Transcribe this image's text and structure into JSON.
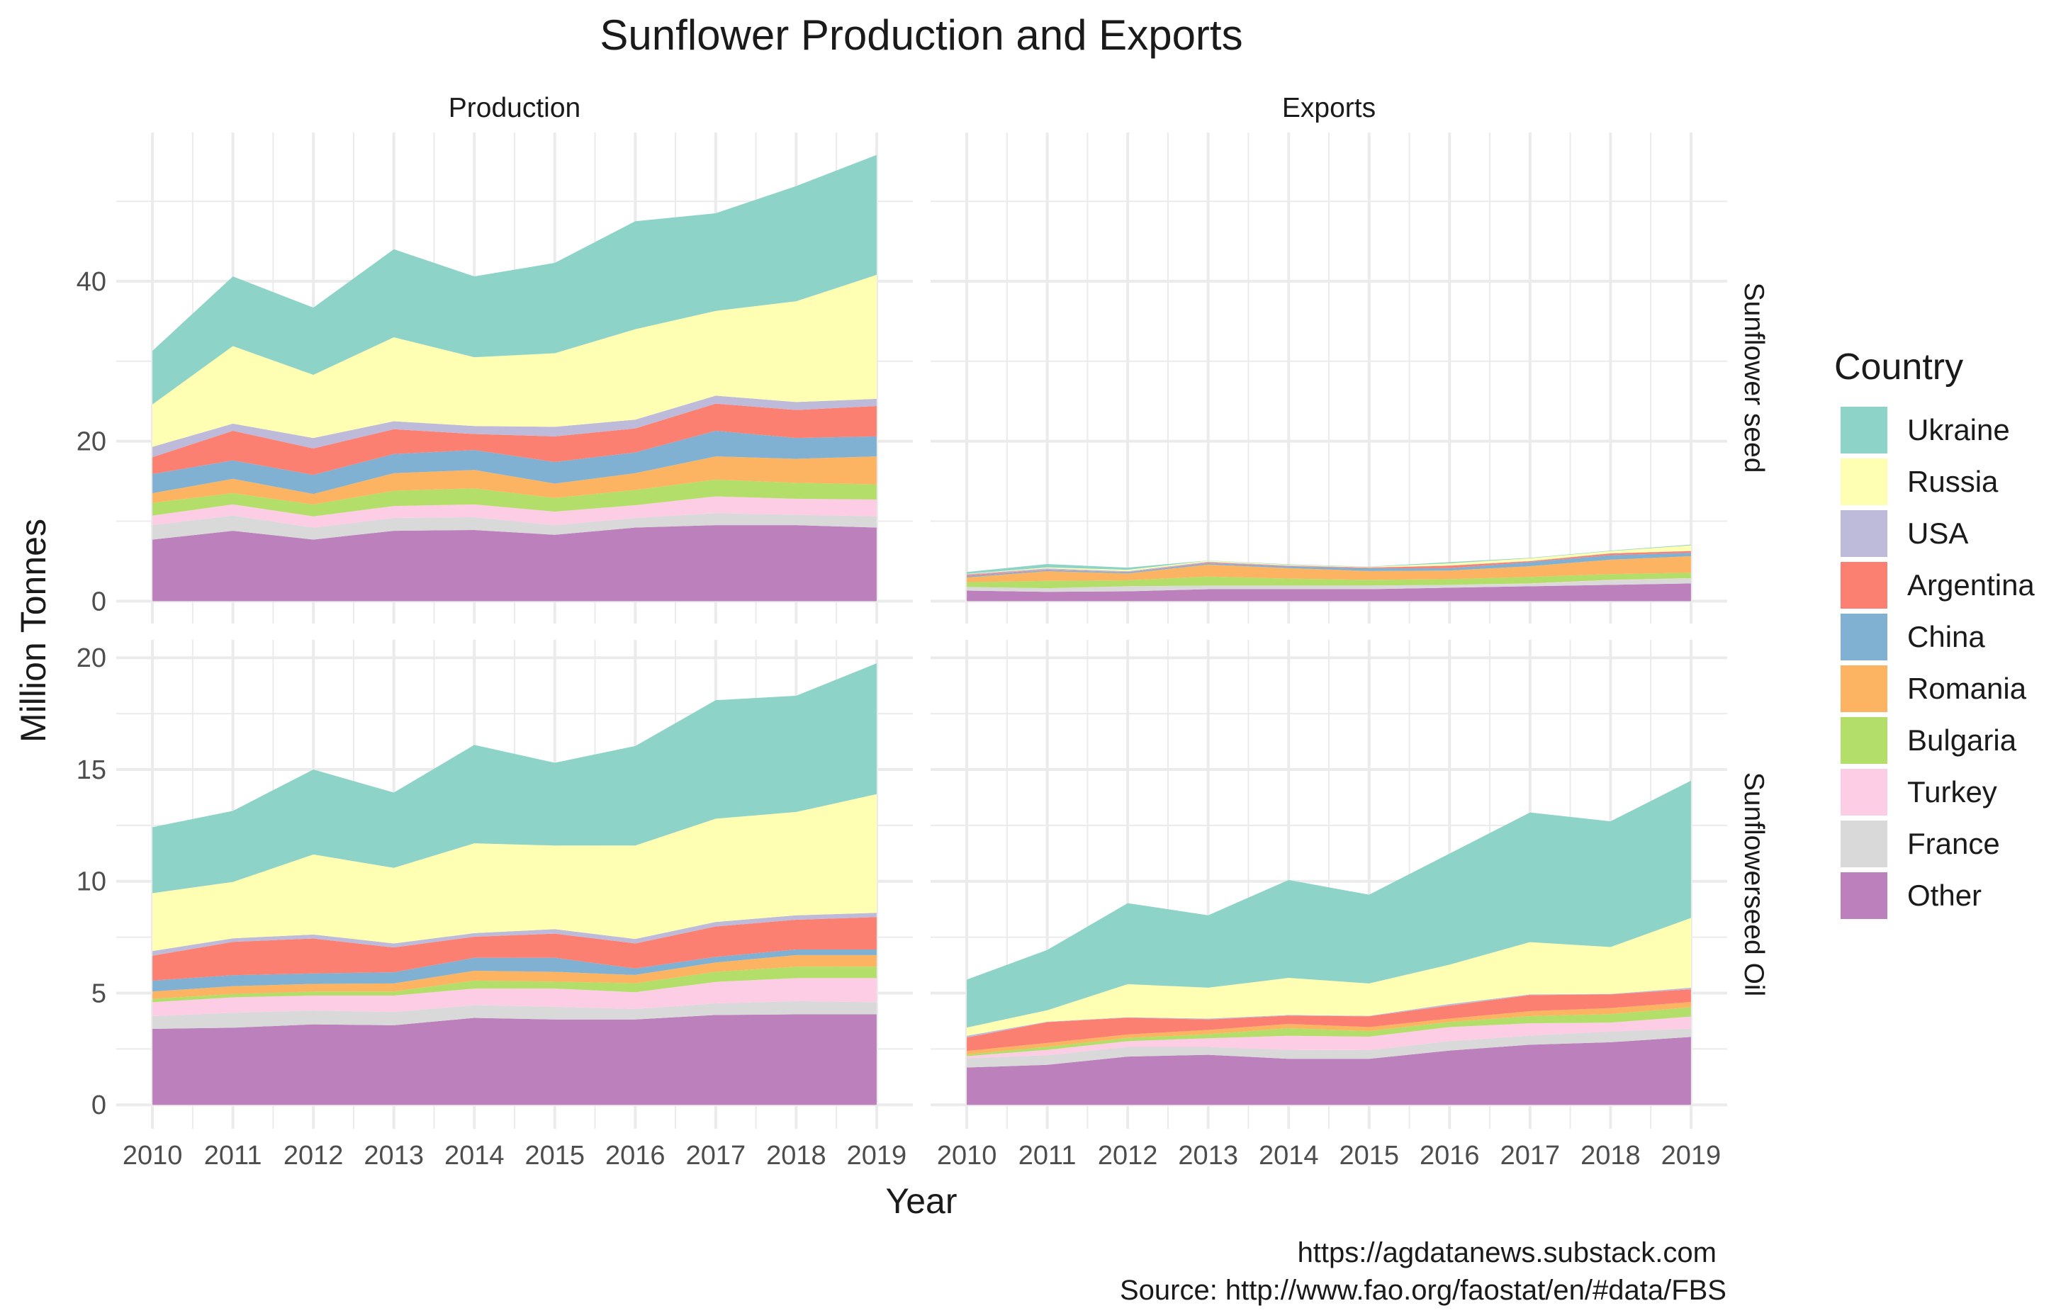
{
  "chart_data": {
    "type": "area",
    "stacked": true,
    "title": "Sunflower Production and Exports",
    "xlabel": "Year",
    "ylabel": "Million Tonnes",
    "legend_title": "Country",
    "legend_position": "right",
    "grid": true,
    "caption": [
      "https://agdatanews.substack.com",
      "Source: http://www.fao.org/faostat/en/#data/FBS"
    ],
    "column_facets": [
      "Production",
      "Exports"
    ],
    "row_facets": [
      "Sunflower seed",
      "Sunflowerseed Oil"
    ],
    "x": [
      2010,
      2011,
      2012,
      2013,
      2014,
      2015,
      2016,
      2017,
      2018,
      2019
    ],
    "legend_order": [
      "Ukraine",
      "Russia",
      "USA",
      "Argentina",
      "China",
      "Romania",
      "Bulgaria",
      "Turkey",
      "France",
      "Other"
    ],
    "colors": {
      "Ukraine": "#8DD3C7",
      "Russia": "#FFFFB3",
      "USA": "#BEBADA",
      "Argentina": "#FB8072",
      "China": "#80B1D3",
      "Romania": "#FDB462",
      "Bulgaria": "#B3DE69",
      "Turkey": "#FCCDE5",
      "France": "#D9D9D9",
      "Other": "#BC80BD"
    },
    "rows": [
      {
        "ylim": [
          -2.8,
          58.6
        ],
        "yticks": [
          0,
          20,
          40
        ],
        "ytick_labels": [
          "0",
          "20",
          "40"
        ]
      },
      {
        "ylim": [
          -1.07,
          20.8
        ],
        "yticks": [
          0,
          5,
          10,
          15,
          20
        ],
        "ytick_labels": [
          "0",
          "5",
          "10",
          "15",
          "20"
        ]
      }
    ],
    "xtick_labels": [
      "2010",
      "2011",
      "2012",
      "2013",
      "2014",
      "2015",
      "2016",
      "2017",
      "2018",
      "2019"
    ],
    "panels": [
      {
        "row": "Sunflower seed",
        "col": "Production",
        "series": {
          "Other": [
            7.7,
            8.8,
            7.7,
            8.8,
            8.9,
            8.3,
            9.2,
            9.5,
            9.5,
            9.2
          ],
          "France": [
            1.8,
            1.9,
            1.5,
            1.6,
            1.6,
            1.2,
            1.2,
            1.5,
            1.3,
            1.4
          ],
          "Turkey": [
            1.2,
            1.4,
            1.4,
            1.5,
            1.6,
            1.7,
            1.6,
            2.1,
            2.0,
            2.1
          ],
          "Bulgaria": [
            1.6,
            1.4,
            1.5,
            1.9,
            2.0,
            1.7,
            1.9,
            2.1,
            2.0,
            1.9
          ],
          "Romania": [
            1.2,
            1.8,
            1.3,
            2.2,
            2.3,
            1.8,
            2.1,
            2.9,
            3.0,
            3.5
          ],
          "China": [
            2.4,
            2.3,
            2.4,
            2.4,
            2.5,
            2.7,
            2.6,
            3.2,
            2.6,
            2.5
          ],
          "Argentina": [
            2.1,
            3.7,
            3.3,
            3.1,
            2.0,
            3.2,
            3.0,
            3.4,
            3.5,
            3.8
          ],
          "USA": [
            1.3,
            0.9,
            1.3,
            1.0,
            1.0,
            1.2,
            1.1,
            1.0,
            1.0,
            0.9
          ],
          "Russia": [
            5.3,
            9.7,
            7.9,
            10.5,
            8.6,
            9.2,
            11.3,
            10.6,
            12.6,
            15.5
          ],
          "Ukraine": [
            6.7,
            8.7,
            8.4,
            11.0,
            10.1,
            11.3,
            13.5,
            12.2,
            14.4,
            15.0
          ]
        }
      },
      {
        "row": "Sunflower seed",
        "col": "Exports",
        "series": {
          "Other": [
            1.32,
            1.17,
            1.23,
            1.5,
            1.5,
            1.5,
            1.68,
            1.86,
            2.04,
            2.22
          ],
          "France": [
            0.45,
            0.45,
            0.6,
            0.45,
            0.45,
            0.45,
            0.36,
            0.3,
            0.56,
            0.62
          ],
          "Turkey": [
            0.0,
            0.0,
            0.03,
            0.0,
            0.0,
            0.0,
            0.0,
            0.06,
            0.06,
            0.03
          ],
          "Bulgaria": [
            0.6,
            0.92,
            0.74,
            1.13,
            0.86,
            0.71,
            0.71,
            0.8,
            0.72,
            0.69
          ],
          "Romania": [
            0.59,
            1.2,
            0.87,
            1.5,
            1.32,
            1.11,
            1.08,
            1.35,
            1.8,
            2.07
          ],
          "China": [
            0.15,
            0.15,
            0.15,
            0.15,
            0.21,
            0.33,
            0.3,
            0.51,
            0.57,
            0.42
          ],
          "Argentina": [
            0.15,
            0.06,
            0.03,
            0.09,
            0.06,
            0.09,
            0.3,
            0.12,
            0.21,
            0.21
          ],
          "USA": [
            0.12,
            0.15,
            0.09,
            0.12,
            0.06,
            0.03,
            0.03,
            0.03,
            0.03,
            0.03
          ],
          "Russia": [
            0.03,
            0.12,
            0.18,
            0.12,
            0.09,
            0.06,
            0.27,
            0.33,
            0.27,
            0.69
          ],
          "Ukraine": [
            0.24,
            0.42,
            0.27,
            0.03,
            0.06,
            0.03,
            0.15,
            0.06,
            0.06,
            0.09
          ]
        }
      },
      {
        "row": "Sunflowerseed Oil",
        "col": "Production",
        "series": {
          "Other": [
            3.4,
            3.45,
            3.6,
            3.56,
            3.89,
            3.82,
            3.82,
            4.02,
            4.05,
            4.05
          ],
          "France": [
            0.57,
            0.67,
            0.62,
            0.59,
            0.57,
            0.57,
            0.47,
            0.52,
            0.59,
            0.54
          ],
          "Turkey": [
            0.62,
            0.69,
            0.67,
            0.74,
            0.74,
            0.81,
            0.75,
            0.96,
            1.03,
            1.08
          ],
          "Bulgaria": [
            0.15,
            0.15,
            0.18,
            0.18,
            0.36,
            0.31,
            0.4,
            0.45,
            0.51,
            0.51
          ],
          "Romania": [
            0.33,
            0.35,
            0.34,
            0.36,
            0.44,
            0.44,
            0.37,
            0.42,
            0.52,
            0.52
          ],
          "China": [
            0.49,
            0.49,
            0.47,
            0.5,
            0.58,
            0.63,
            0.29,
            0.25,
            0.25,
            0.25
          ],
          "Argentina": [
            1.11,
            1.49,
            1.56,
            1.11,
            0.94,
            1.08,
            1.12,
            1.36,
            1.33,
            1.45
          ],
          "USA": [
            0.21,
            0.16,
            0.18,
            0.18,
            0.16,
            0.2,
            0.2,
            0.2,
            0.2,
            0.19
          ],
          "Russia": [
            2.59,
            2.52,
            3.58,
            3.38,
            4.02,
            3.74,
            4.18,
            4.62,
            4.62,
            5.31
          ],
          "Ukraine": [
            2.95,
            3.18,
            3.8,
            3.37,
            4.4,
            3.7,
            4.45,
            5.3,
            5.2,
            5.85
          ]
        }
      },
      {
        "row": "Sunflowerseed Oil",
        "col": "Exports",
        "series": {
          "Other": [
            1.67,
            1.79,
            2.16,
            2.24,
            2.06,
            2.06,
            2.43,
            2.69,
            2.8,
            3.04
          ],
          "France": [
            0.42,
            0.43,
            0.43,
            0.35,
            0.4,
            0.39,
            0.42,
            0.41,
            0.48,
            0.37
          ],
          "Turkey": [
            0.09,
            0.24,
            0.26,
            0.39,
            0.63,
            0.6,
            0.63,
            0.55,
            0.4,
            0.54
          ],
          "Bulgaria": [
            0.07,
            0.14,
            0.14,
            0.18,
            0.34,
            0.25,
            0.23,
            0.32,
            0.38,
            0.42
          ],
          "Romania": [
            0.16,
            0.17,
            0.16,
            0.19,
            0.19,
            0.18,
            0.15,
            0.22,
            0.27,
            0.23
          ],
          "China": [
            0.0,
            0.0,
            0.0,
            0.0,
            0.0,
            0.0,
            0.0,
            0.0,
            0.0,
            0.0
          ],
          "Argentina": [
            0.6,
            0.93,
            0.75,
            0.47,
            0.37,
            0.48,
            0.58,
            0.72,
            0.61,
            0.57
          ],
          "USA": [
            0.08,
            0.02,
            0.02,
            0.04,
            0.03,
            0.02,
            0.07,
            0.03,
            0.02,
            0.07
          ],
          "Russia": [
            0.37,
            0.51,
            1.48,
            1.38,
            1.66,
            1.45,
            1.76,
            2.34,
            2.1,
            3.12
          ],
          "Ukraine": [
            2.14,
            2.7,
            3.62,
            3.24,
            4.38,
            3.97,
            4.97,
            5.8,
            5.62,
            6.14
          ]
        }
      }
    ]
  }
}
